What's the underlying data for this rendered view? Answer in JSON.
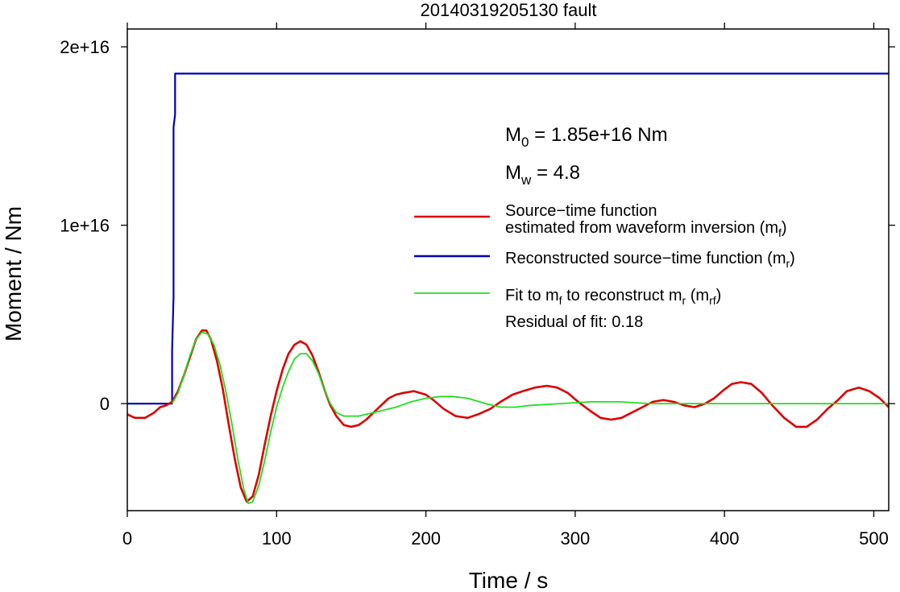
{
  "chart_data": {
    "type": "line",
    "title": "20140319205130 fault",
    "xlabel": "Time / s",
    "ylabel": "Moment / Nm",
    "xlim": [
      0,
      510
    ],
    "ylim": [
      -6000000000000000.0,
      2.1e+16
    ],
    "x_ticks": [
      0,
      100,
      200,
      300,
      400,
      500
    ],
    "x_tick_labels": [
      "0",
      "100",
      "200",
      "300",
      "400",
      "500"
    ],
    "y_ticks": [
      0,
      1e+16,
      2e+16
    ],
    "y_tick_labels": [
      "0",
      "1e+16",
      "2e+16"
    ],
    "grid": false,
    "legend_position": "right",
    "annotations": {
      "m0": {
        "sym": "M",
        "sub": "0",
        "text": " = 1.85e+16 Nm"
      },
      "mw": {
        "sym": "M",
        "sub": "w",
        "text": " = 4.8"
      },
      "residual": "Residual of fit: 0.18"
    },
    "legend": [
      {
        "key": "mf",
        "color": "#dd0000",
        "lines": [
          [
            {
              "t": "Source−time function"
            }
          ],
          [
            {
              "t": "estimated from waveform inversion (m"
            },
            {
              "t": "f",
              "sub": true
            },
            {
              "t": ")"
            }
          ]
        ]
      },
      {
        "key": "mr",
        "color": "#0000bb",
        "lines": [
          [
            {
              "t": "Reconstructed source−time function (m"
            },
            {
              "t": "r",
              "sub": true
            },
            {
              "t": ")"
            }
          ]
        ]
      },
      {
        "key": "mrf",
        "color": "#22dd22",
        "lines": [
          [
            {
              "t": "Fit to m"
            },
            {
              "t": "f",
              "sub": true
            },
            {
              "t": " to reconstruct m"
            },
            {
              "t": "r",
              "sub": true
            },
            {
              "t": " (m"
            },
            {
              "t": "rf",
              "sub": true
            },
            {
              "t": ")"
            }
          ]
        ]
      }
    ],
    "series": [
      {
        "key": "mr",
        "color": "#0000bb",
        "width": 2.2,
        "x": [
          0,
          30,
          30,
          31,
          31,
          32,
          32,
          510
        ],
        "y": [
          0,
          0,
          3000000000000000.0,
          6000000000000000.0,
          1.55e+16,
          1.62e+16,
          1.85e+16,
          1.85e+16
        ]
      },
      {
        "key": "mf",
        "color": "#dd0000",
        "width": 2.6,
        "x": [
          0,
          5,
          12,
          18,
          22,
          26,
          30,
          34,
          38,
          42,
          46,
          50,
          53,
          56,
          60,
          64,
          68,
          72,
          76,
          80,
          84,
          88,
          92,
          96,
          100,
          104,
          108,
          112,
          116,
          120,
          124,
          128,
          132,
          136,
          140,
          145,
          150,
          155,
          160,
          165,
          170,
          175,
          180,
          185,
          192,
          200,
          205,
          212,
          220,
          228,
          235,
          243,
          250,
          258,
          265,
          273,
          281,
          288,
          295,
          302,
          310,
          317,
          324,
          331,
          338,
          345,
          352,
          359,
          366,
          373,
          380,
          387,
          393,
          400,
          405,
          411,
          418,
          425,
          432,
          440,
          448,
          455,
          462,
          469,
          476,
          482,
          490,
          497,
          504,
          510
        ],
        "y": [
          -600000000000000.0,
          -800000000000000.0,
          -800000000000000.0,
          -500000000000000.0,
          -200000000000000.0,
          -100000000000000.0,
          100000000000000.0,
          700000000000000.0,
          1600000000000000.0,
          2600000000000000.0,
          3600000000000000.0,
          4100000000000000.0,
          4100000000000000.0,
          3600000000000000.0,
          2400000000000000.0,
          800000000000000.0,
          -1200000000000000.0,
          -3100000000000000.0,
          -4700000000000000.0,
          -5500000000000000.0,
          -5200000000000000.0,
          -4000000000000000.0,
          -2300000000000000.0,
          -700000000000000.0,
          700000000000000.0,
          1900000000000000.0,
          2800000000000000.0,
          3300000000000000.0,
          3500000000000000.0,
          3300000000000000.0,
          2700000000000000.0,
          1800000000000000.0,
          800000000000000.0,
          -100000000000000.0,
          -700000000000000.0,
          -1200000000000000.0,
          -1300000000000000.0,
          -1200000000000000.0,
          -900000000000000.0,
          -500000000000000.0,
          -100000000000000.0,
          300000000000000.0,
          500000000000000.0,
          600000000000000.0,
          700000000000000.0,
          500000000000000.0,
          200000000000000.0,
          -300000000000000.0,
          -700000000000000.0,
          -800000000000000.0,
          -600000000000000.0,
          -300000000000000.0,
          100000000000000.0,
          500000000000000.0,
          700000000000000.0,
          900000000000000.0,
          1000000000000000.0,
          900000000000000.0,
          600000000000000.0,
          100000000000000.0,
          -400000000000000.0,
          -800000000000000.0,
          -900000000000000.0,
          -800000000000000.0,
          -500000000000000.0,
          -200000000000000.0,
          100000000000000.0,
          200000000000000.0,
          100000000000000.0,
          -100000000000000.0,
          -200000000000000.0,
          0,
          300000000000000.0,
          800000000000000.0,
          1100000000000000.0,
          1200000000000000.0,
          1100000000000000.0,
          600000000000000.0,
          -100000000000000.0,
          -800000000000000.0,
          -1300000000000000.0,
          -1300000000000000.0,
          -900000000000000.0,
          -300000000000000.0,
          200000000000000.0,
          700000000000000.0,
          900000000000000.0,
          700000000000000.0,
          300000000000000.0,
          -200000000000000.0
        ]
      },
      {
        "key": "mrf",
        "color": "#22dd22",
        "width": 1.8,
        "x": [
          30,
          34,
          38,
          42,
          46,
          50,
          54,
          58,
          62,
          66,
          70,
          74,
          78,
          81,
          84,
          88,
          92,
          96,
          100,
          104,
          108,
          112,
          116,
          120,
          124,
          128,
          132,
          136,
          140,
          145,
          150,
          155,
          160,
          165,
          170,
          180,
          190,
          200,
          210,
          218,
          228,
          240,
          250,
          260,
          270,
          290,
          310,
          330,
          350,
          370,
          390,
          420,
          460,
          510
        ],
        "y": [
          0,
          600000000000000.0,
          1600000000000000.0,
          2700000000000000.0,
          3600000000000000.0,
          4000000000000000.0,
          3900000000000000.0,
          3300000000000000.0,
          2200000000000000.0,
          700000000000000.0,
          -1100000000000000.0,
          -3100000000000000.0,
          -4800000000000000.0,
          -5600000000000000.0,
          -5500000000000000.0,
          -4600000000000000.0,
          -3200000000000000.0,
          -1600000000000000.0,
          -200000000000000.0,
          900000000000000.0,
          1800000000000000.0,
          2500000000000000.0,
          2800000000000000.0,
          2800000000000000.0,
          2400000000000000.0,
          1700000000000000.0,
          800000000000000.0,
          0,
          -500000000000000.0,
          -700000000000000.0,
          -700000000000000.0,
          -700000000000000.0,
          -600000000000000.0,
          -500000000000000.0,
          -400000000000000.0,
          -200000000000000.0,
          100000000000000.0,
          300000000000000.0,
          400000000000000.0,
          400000000000000.0,
          300000000000000.0,
          0,
          -200000000000000.0,
          -200000000000000.0,
          -100000000000000.0,
          0,
          100000000000000.0,
          100000000000000.0,
          0,
          0,
          0,
          0,
          0,
          0
        ]
      }
    ]
  }
}
